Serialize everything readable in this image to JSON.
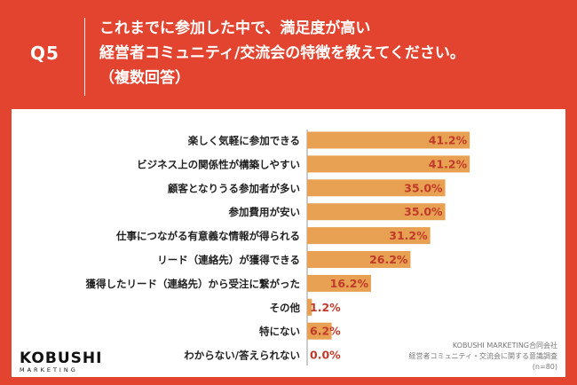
{
  "header": {
    "question_number": "Q5",
    "question_lines": [
      "これまでに参加した中で、満足度が高い",
      "経営者コミュニティ/交流会の特徴を教えてください。",
      "（複数回答）"
    ]
  },
  "chart_data": {
    "type": "bar",
    "orientation": "horizontal",
    "categories": [
      "楽しく気軽に参加できる",
      "ビジネス上の関係性が構築しやすい",
      "顧客となりうる参加者が多い",
      "参加費用が安い",
      "仕事につながる有意義な情報が得られる",
      "リード（連絡先）が獲得できる",
      "獲得したリード（連絡先）から受注に繋がった",
      "その他",
      "特にない",
      "わからない/答えられない"
    ],
    "values": [
      41.2,
      41.2,
      35.0,
      35.0,
      31.2,
      26.2,
      16.2,
      1.2,
      6.2,
      0.0
    ],
    "value_labels": [
      "41.2%",
      "41.2%",
      "35.0%",
      "35.0%",
      "31.2%",
      "26.2%",
      "16.2%",
      "1.2%",
      "6.2%",
      "0.0%"
    ],
    "xlim": [
      0,
      45
    ],
    "bar_color": "#e8a152",
    "label_color": "#c0392b"
  },
  "brand": {
    "name": "KOBUSHI",
    "sub": "MARKETING"
  },
  "source": {
    "lines": [
      "KOBUSHI MARKETING合同会社",
      "経営者コミュニティ・交流会に関する意識調査",
      "(n=80)"
    ]
  },
  "colors": {
    "background": "#e2442f",
    "panel": "#ffffff"
  }
}
